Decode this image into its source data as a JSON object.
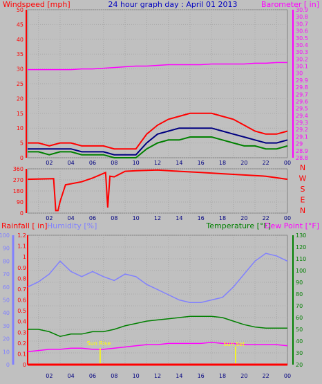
{
  "chart_data": [
    {
      "type": "line",
      "title": "24 hour graph day : April 01 2013",
      "left_axis_label": "Windspeed [mph]",
      "right_axis_label": "Barometer [ in]",
      "x_ticks": [
        "02",
        "04",
        "06",
        "08",
        "10",
        "12",
        "14",
        "16",
        "18",
        "20",
        "22",
        "00"
      ],
      "ylim_left": [
        0,
        50
      ],
      "yticks_left": [
        "0",
        "5",
        "10",
        "15",
        "20",
        "25",
        "30",
        "35",
        "40",
        "45",
        "50"
      ],
      "ylim_right": [
        28.8,
        30.9
      ],
      "yticks_right": [
        "28.8",
        "28.9",
        "29",
        "29.1",
        "29.2",
        "29.3",
        "29.4",
        "29.5",
        "29.6",
        "29.7",
        "29.8",
        "29.9",
        "30",
        "30.1",
        "30.2",
        "30.3",
        "30.4",
        "30.5",
        "30.6",
        "30.7",
        "30.8",
        "30.9"
      ],
      "grid": true,
      "colors": {
        "gust": "#ff0000",
        "avg": "#000080",
        "min": "#008000",
        "barometer": "#ff00ff"
      },
      "hours": [
        0,
        1,
        2,
        3,
        4,
        5,
        6,
        7,
        8,
        9,
        10,
        11,
        12,
        13,
        14,
        15,
        16,
        17,
        18,
        19,
        20,
        21,
        22,
        23,
        24
      ],
      "series": [
        {
          "key": "gust",
          "values": [
            5,
            5,
            4,
            5,
            5,
            4,
            4,
            4,
            3,
            3,
            3,
            8,
            11,
            13,
            14,
            15,
            15,
            15,
            14,
            13,
            11,
            9,
            8,
            8,
            9
          ]
        },
        {
          "key": "avg",
          "values": [
            3,
            3,
            3,
            3,
            3,
            2,
            2,
            2,
            1,
            1,
            1,
            5,
            8,
            9,
            10,
            10,
            10,
            10,
            9,
            8,
            7,
            6,
            5,
            5,
            6
          ]
        },
        {
          "key": "min",
          "values": [
            2,
            2,
            1,
            2,
            2,
            1,
            1,
            1,
            0,
            0,
            0,
            3,
            5,
            6,
            6,
            7,
            7,
            7,
            6,
            5,
            4,
            4,
            3,
            3,
            4
          ]
        },
        {
          "key": "barometer",
          "axis": "right",
          "values": [
            30.05,
            30.05,
            30.05,
            30.05,
            30.05,
            30.06,
            30.06,
            30.07,
            30.08,
            30.09,
            30.1,
            30.1,
            30.11,
            30.12,
            30.12,
            30.12,
            30.12,
            30.13,
            30.13,
            30.13,
            30.13,
            30.14,
            30.14,
            30.15,
            30.15
          ]
        }
      ]
    },
    {
      "type": "line",
      "series_name": "Wind direction",
      "ylim_left": [
        0,
        360
      ],
      "yticks_left": [
        "0",
        "90",
        "180",
        "270",
        "360"
      ],
      "right_labels": [
        "N",
        "W",
        "S",
        "E",
        "N"
      ],
      "x_ticks": [
        "02",
        "04",
        "06",
        "08",
        "10",
        "12",
        "14",
        "16",
        "18",
        "20",
        "22",
        "00"
      ],
      "color": "#ff0000",
      "points": [
        [
          0,
          275
        ],
        [
          2.4,
          280
        ],
        [
          2.6,
          20
        ],
        [
          2.8,
          20
        ],
        [
          3.0,
          95
        ],
        [
          3.5,
          230
        ],
        [
          5.0,
          255
        ],
        [
          6.0,
          285
        ],
        [
          7.2,
          330
        ],
        [
          7.4,
          45
        ],
        [
          7.6,
          300
        ],
        [
          8,
          295
        ],
        [
          9,
          340
        ],
        [
          10,
          345
        ],
        [
          12,
          350
        ],
        [
          14,
          340
        ],
        [
          16,
          330
        ],
        [
          18,
          320
        ],
        [
          20,
          310
        ],
        [
          22,
          300
        ],
        [
          24,
          275
        ]
      ]
    },
    {
      "type": "line",
      "labels": {
        "rainfall": "Rainfall [ in]",
        "humidity": "Humidity [%]",
        "temperature": "Temperature [°F]",
        "dewpoint": "Dew Point [°F]"
      },
      "ylim_rain": [
        0,
        1.2
      ],
      "yticks_rain": [
        "0",
        "0.1",
        "0.2",
        "0.3",
        "0.4",
        "0.5",
        "0.6",
        "0.7",
        "0.8",
        "0.9",
        "1",
        "1.1",
        "1.2"
      ],
      "ylim_humidity": [
        0,
        100
      ],
      "yticks_humidity": [
        "0",
        "10",
        "20",
        "30",
        "40",
        "50",
        "60",
        "70",
        "80",
        "90",
        "100"
      ],
      "ylim_temp": [
        20,
        130
      ],
      "yticks_temp": [
        "20",
        "30",
        "40",
        "50",
        "60",
        "70",
        "80",
        "90",
        "100",
        "110",
        "120",
        "130"
      ],
      "x_ticks": [
        "02",
        "04",
        "06",
        "08",
        "10",
        "12",
        "14",
        "16",
        "18",
        "20",
        "22",
        "00"
      ],
      "colors": {
        "rainfall": "#ff0000",
        "humidity": "#8080ff",
        "temperature": "#008000",
        "dewpoint": "#ff00ff"
      },
      "annotations": [
        "Sun Rise",
        "Sun Set"
      ],
      "hours": [
        0,
        1,
        2,
        3,
        4,
        5,
        6,
        7,
        8,
        9,
        10,
        11,
        12,
        13,
        14,
        15,
        16,
        17,
        18,
        19,
        20,
        21,
        22,
        23,
        24
      ],
      "series": [
        {
          "key": "humidity",
          "axis": "humidity",
          "values": [
            60,
            64,
            70,
            80,
            72,
            68,
            72,
            68,
            65,
            70,
            68,
            62,
            58,
            54,
            50,
            48,
            48,
            50,
            52,
            60,
            70,
            80,
            86,
            84,
            80
          ]
        },
        {
          "key": "temperature",
          "axis": "temp",
          "values": [
            50,
            50,
            48,
            44,
            46,
            46,
            48,
            48,
            50,
            53,
            55,
            57,
            58,
            59,
            60,
            61,
            61,
            61,
            60,
            57,
            54,
            52,
            51,
            51,
            51
          ]
        },
        {
          "key": "dewpoint",
          "axis": "temp",
          "values": [
            31,
            32,
            33,
            33,
            34,
            34,
            33,
            33,
            34,
            35,
            36,
            37,
            37,
            38,
            38,
            38,
            38,
            39,
            38,
            38,
            37,
            37,
            37,
            37,
            36
          ]
        },
        {
          "key": "rainfall",
          "axis": "rain",
          "values": [
            0,
            0,
            0,
            0,
            0,
            0,
            0,
            0,
            0,
            0,
            0,
            0,
            0,
            0,
            0,
            0,
            0,
            0,
            0,
            0,
            0,
            0,
            0,
            0,
            0
          ]
        }
      ]
    }
  ]
}
